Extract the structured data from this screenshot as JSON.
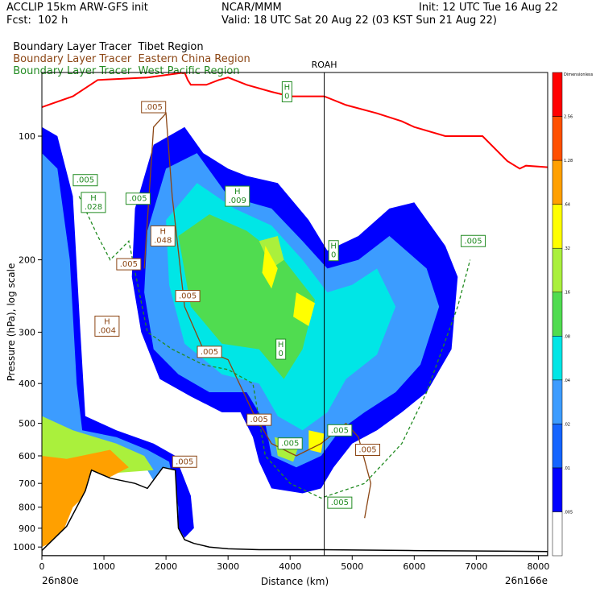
{
  "header": {
    "title_left": "ACCLIP 15km ARW-GFS init",
    "org": "NCAR/MMM",
    "init": "Init: 12 UTC Tue 16 Aug 22",
    "fcst": "Fcst:  102 h",
    "valid": "Valid: 18 UTC Sat 20 Aug 22 (03 KST Sun 21 Aug 22)"
  },
  "legend": [
    {
      "label": "Boundary Layer Tracer",
      "region": "Tibet Region",
      "color": "#000000"
    },
    {
      "label": "Boundary Layer Tracer",
      "region": "Eastern China Region",
      "color": "#8B4513"
    },
    {
      "label": "Boundary Layer Tracer",
      "region": "West Pacific Region",
      "color": "#228B22"
    }
  ],
  "chart_data": {
    "type": "heatmap",
    "xlabel": "Distance (km)",
    "ylabel": "Pressure (hPa), log scale",
    "x_ticks": [
      "0",
      "1000",
      "2000",
      "3000",
      "4000",
      "5000",
      "6000",
      "7000",
      "8000"
    ],
    "y_ticks": [
      "100",
      "200",
      "300",
      "400",
      "500",
      "600",
      "700",
      "800",
      "900",
      "1000"
    ],
    "xlim": [
      0,
      8150
    ],
    "ylim": [
      1050,
      70
    ],
    "yscale": "log",
    "left_endpoint": "26n80e",
    "right_endpoint": "26n166e",
    "marker": {
      "label": "ROAH",
      "x": 4550
    },
    "colorbar": {
      "unit_label": "Dimensionless",
      "levels": [
        ".005",
        ".01",
        ".02",
        ".04",
        ".08",
        ".16",
        ".32",
        ".64",
        "1.28",
        "2.56"
      ],
      "colors": [
        "#ffffff",
        "#0000ff",
        "#1464ff",
        "#3c9cff",
        "#00e6e6",
        "#50dc50",
        "#aaf03c",
        "#ffff00",
        "#ffa000",
        "#ff5000",
        "#ff0000"
      ]
    },
    "tropopause_color": "#ff0000",
    "contour_labels": [
      {
        "text": ".005",
        "x": 1800,
        "p": 85,
        "color": "#8B4513"
      },
      {
        "text": "H\n0",
        "x": 3950,
        "p": 78,
        "color": "#228B22"
      },
      {
        "text": ".005",
        "x": 700,
        "p": 128,
        "color": "#228B22"
      },
      {
        "text": "H\n.028",
        "x": 830,
        "p": 145,
        "color": "#228B22"
      },
      {
        "text": ".005",
        "x": 1550,
        "p": 142,
        "color": "#228B22"
      },
      {
        "text": "H\n.009",
        "x": 3150,
        "p": 140,
        "color": "#228B22"
      },
      {
        "text": "H\n.048",
        "x": 1950,
        "p": 175,
        "color": "#8B4513"
      },
      {
        "text": ".005",
        "x": 1400,
        "p": 205,
        "color": "#8B4513"
      },
      {
        "text": "H\n0",
        "x": 4700,
        "p": 190,
        "color": "#228B22"
      },
      {
        "text": ".005",
        "x": 6950,
        "p": 180,
        "color": "#228B22"
      },
      {
        "text": ".005",
        "x": 2350,
        "p": 245,
        "color": "#8B4513"
      },
      {
        "text": "H\n.004",
        "x": 1050,
        "p": 290,
        "color": "#8B4513"
      },
      {
        "text": ".005",
        "x": 2700,
        "p": 335,
        "color": "#8B4513"
      },
      {
        "text": "H\n0",
        "x": 3850,
        "p": 330,
        "color": "#228B22"
      },
      {
        "text": ".005",
        "x": 3500,
        "p": 490,
        "color": "#8B4513"
      },
      {
        "text": ".005",
        "x": 4000,
        "p": 560,
        "color": "#228B22"
      },
      {
        "text": ".005",
        "x": 4800,
        "p": 520,
        "color": "#228B22"
      },
      {
        "text": ".005",
        "x": 5250,
        "p": 580,
        "color": "#8B4513"
      },
      {
        "text": ".005",
        "x": 2300,
        "p": 620,
        "color": "#8B4513"
      },
      {
        "text": ".005",
        "x": 4800,
        "p": 780,
        "color": "#228B22"
      }
    ]
  }
}
